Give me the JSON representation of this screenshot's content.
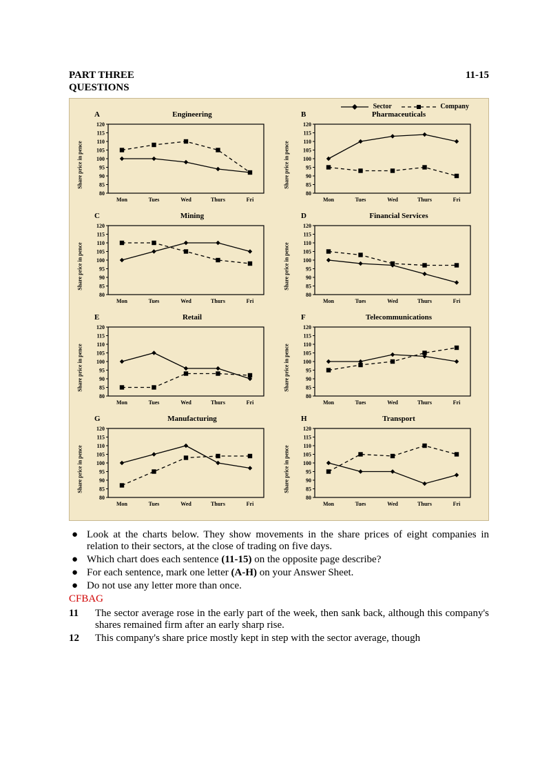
{
  "header": {
    "part": "PART THREE",
    "questions": "QUESTIONS",
    "range": "11-15"
  },
  "legend": {
    "sector_label": "Sector",
    "company_label": "Company"
  },
  "chart_style": {
    "background_color": "#f3e8c8",
    "plot_background": "#f3e8c8",
    "border_color": "#000000",
    "grid_color": "#000000",
    "line_width": 1.3,
    "marker_size": 3.2,
    "ylabel": "Share price in pence",
    "ylim": [
      80,
      120
    ],
    "yticks": [
      80,
      85,
      90,
      95,
      100,
      105,
      110,
      115,
      120
    ],
    "days": [
      "Mon",
      "Tues",
      "Wed",
      "Thurs",
      "Fri"
    ],
    "label_fontsize": 8,
    "title_fontsize": 11
  },
  "charts": [
    {
      "letter": "A",
      "title": "Engineering",
      "sector": [
        100,
        100,
        98,
        94,
        92
      ],
      "company": [
        105,
        108,
        110,
        105,
        92
      ]
    },
    {
      "letter": "B",
      "title": "Pharmaceuticals",
      "sector": [
        100,
        110,
        113,
        114,
        110
      ],
      "company": [
        95,
        93,
        93,
        95,
        90
      ]
    },
    {
      "letter": "C",
      "title": "Mining",
      "sector": [
        100,
        105,
        110,
        110,
        105
      ],
      "company": [
        110,
        110,
        105,
        100,
        98
      ]
    },
    {
      "letter": "D",
      "title": "Financial Services",
      "sector": [
        100,
        98,
        97,
        92,
        87
      ],
      "company": [
        105,
        103,
        98,
        97,
        97
      ]
    },
    {
      "letter": "E",
      "title": "Retail",
      "sector": [
        100,
        105,
        96,
        96,
        90
      ],
      "company": [
        85,
        85,
        93,
        93,
        92
      ]
    },
    {
      "letter": "F",
      "title": "Telecommunications",
      "sector": [
        100,
        100,
        104,
        103,
        100
      ],
      "company": [
        95,
        98,
        100,
        105,
        108
      ]
    },
    {
      "letter": "G",
      "title": "Manufacturing",
      "sector": [
        100,
        105,
        110,
        100,
        97
      ],
      "company": [
        87,
        95,
        103,
        104,
        104
      ]
    },
    {
      "letter": "H",
      "title": "Transport",
      "sector": [
        100,
        95,
        95,
        88,
        93
      ],
      "company": [
        95,
        105,
        104,
        110,
        105
      ]
    }
  ],
  "instructions": {
    "b1": "Look at the charts below. They show movements in the share prices of eight companies in relation to their sectors, at the close of trading on five days.",
    "b2_pre": "Which chart does each sentence ",
    "b2_bold": "(11-15)",
    "b2_post": " on the opposite page describe?",
    "b3_pre": "For each sentence, mark one letter ",
    "b3_bold": "(A-H)",
    "b3_post": " on your Answer Sheet.",
    "b4": "Do not use any letter more than once."
  },
  "answer_key": "CFBAG",
  "questions": [
    {
      "num": "11",
      "text": "The sector average rose in the early part of the week, then sank back, although this company's shares remained firm after an early sharp rise."
    },
    {
      "num": "12",
      "text": "This company's share price mostly kept in step with the sector average, though"
    }
  ]
}
